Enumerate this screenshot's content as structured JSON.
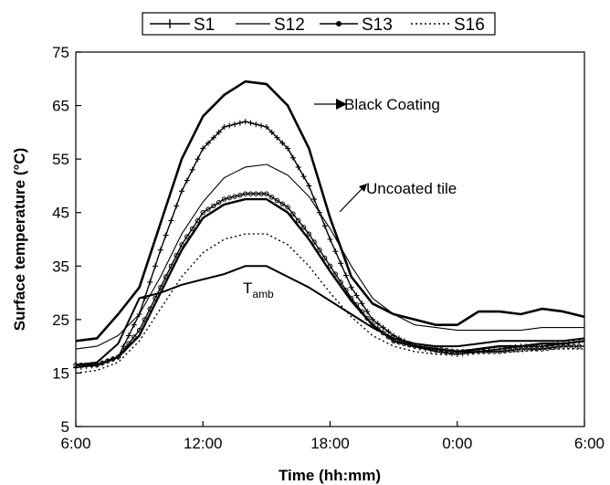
{
  "chart_data": {
    "type": "line",
    "xlabel": "Time (hh:mm)",
    "ylabel": "Surface temperature (°C)",
    "xlim": [
      6,
      30
    ],
    "ylim": [
      5,
      75
    ],
    "x_ticks": [
      6,
      12,
      18,
      24,
      30
    ],
    "x_tick_labels": [
      "6:00",
      "12:00",
      "18:00",
      "0:00",
      "6:00"
    ],
    "y_ticks": [
      5,
      15,
      25,
      35,
      45,
      55,
      65,
      75
    ],
    "grid": false,
    "legend_position": "top",
    "legend": [
      "S1",
      "S12",
      "S13",
      "S16"
    ],
    "annotations": [
      {
        "text": "Black Coating",
        "x": 18.2,
        "y": 67,
        "arrow_to": [
          17.7,
          66.5
        ]
      },
      {
        "text": "Uncoated tile",
        "x": 19.7,
        "y": 48.5,
        "arrow_to": [
          17.9,
          42
        ]
      },
      {
        "text": "T",
        "subscript": "amb",
        "x": 13.8,
        "y": 31.5
      }
    ],
    "series": [
      {
        "name": "S1",
        "x": [
          6,
          7,
          8,
          9,
          10,
          11,
          12,
          13,
          14,
          15,
          16,
          17,
          18,
          19,
          20,
          21,
          22,
          23,
          24,
          25,
          26,
          27,
          28,
          29,
          30
        ],
        "values": [
          16,
          16.5,
          18,
          26,
          38,
          49,
          57,
          61,
          62,
          61,
          57,
          50,
          40,
          31,
          25,
          22,
          20,
          19,
          18.5,
          19,
          19.5,
          20,
          20,
          20.5,
          21
        ]
      },
      {
        "name": "Black Coating",
        "x": [
          6,
          7,
          8,
          9,
          10,
          11,
          12,
          13,
          14,
          15,
          16,
          17,
          18,
          19,
          20,
          21,
          22,
          23,
          24,
          25,
          26,
          27,
          28,
          29,
          30
        ],
        "values": [
          21,
          21.5,
          26,
          31,
          43,
          55,
          63,
          67,
          69.5,
          69,
          65,
          57,
          44,
          33,
          28,
          26,
          25,
          24,
          24,
          26.5,
          26.5,
          26,
          27,
          26.5,
          25.5
        ]
      },
      {
        "name": "S12",
        "x": [
          6,
          7,
          8,
          9,
          10,
          11,
          12,
          13,
          14,
          15,
          16,
          17,
          18,
          19,
          20,
          21,
          22,
          23,
          24,
          25,
          26,
          27,
          28,
          29,
          30
        ],
        "values": [
          19.5,
          20,
          22,
          26,
          33,
          41,
          47,
          51.5,
          53.5,
          54,
          52,
          48,
          42,
          35,
          29,
          26,
          24,
          23.5,
          23,
          23,
          23,
          23,
          23.5,
          23.5,
          23.5
        ]
      },
      {
        "name": "S13",
        "x": [
          6,
          7,
          8,
          9,
          10,
          11,
          12,
          13,
          14,
          15,
          16,
          17,
          18,
          19,
          20,
          21,
          22,
          23,
          24,
          25,
          26,
          27,
          28,
          29,
          30
        ],
        "values": [
          16.5,
          16.5,
          18,
          23,
          31,
          39,
          45,
          47.5,
          48.5,
          48.5,
          46,
          41,
          35,
          29,
          24,
          21,
          20,
          19.5,
          19,
          19,
          19,
          19.5,
          19.5,
          20,
          20
        ]
      },
      {
        "name": "Uncoated tile",
        "x": [
          6,
          7,
          8,
          9,
          10,
          11,
          12,
          13,
          14,
          15,
          16,
          17,
          18,
          19,
          20,
          21,
          22,
          23,
          24,
          25,
          26,
          27,
          28,
          29,
          30
        ],
        "values": [
          16.5,
          16.5,
          18,
          22,
          30,
          38,
          44,
          46.5,
          47.5,
          47.5,
          45,
          40,
          34,
          28.5,
          24,
          21,
          20,
          19.5,
          19,
          19.5,
          20,
          20,
          20.5,
          20.5,
          21
        ]
      },
      {
        "name": "S16",
        "x": [
          6,
          7,
          8,
          9,
          10,
          11,
          12,
          13,
          14,
          15,
          16,
          17,
          18,
          19,
          20,
          21,
          22,
          23,
          24,
          25,
          26,
          27,
          28,
          29,
          30
        ],
        "values": [
          15,
          15.5,
          17,
          21,
          27,
          33,
          37.5,
          40,
          41,
          41,
          39,
          35,
          30,
          25.5,
          22,
          20,
          19,
          18.5,
          18.5,
          19,
          19,
          19,
          19.5,
          19.5,
          19.5
        ]
      },
      {
        "name": "Tamb",
        "x": [
          6,
          7,
          8,
          9,
          10,
          11,
          12,
          13,
          14,
          15,
          16,
          17,
          18,
          19,
          20,
          21,
          22,
          23,
          24,
          25,
          26,
          27,
          28,
          29,
          30
        ],
        "values": [
          16.5,
          17,
          20.5,
          29,
          30,
          31.5,
          32.5,
          33.5,
          35,
          35,
          33,
          31,
          28.5,
          26,
          23.5,
          21.5,
          20.5,
          20,
          20,
          20.5,
          21,
          21,
          21,
          21,
          21.5
        ]
      }
    ]
  },
  "style": {
    "line_color": "#000000",
    "background": "#ffffff"
  }
}
